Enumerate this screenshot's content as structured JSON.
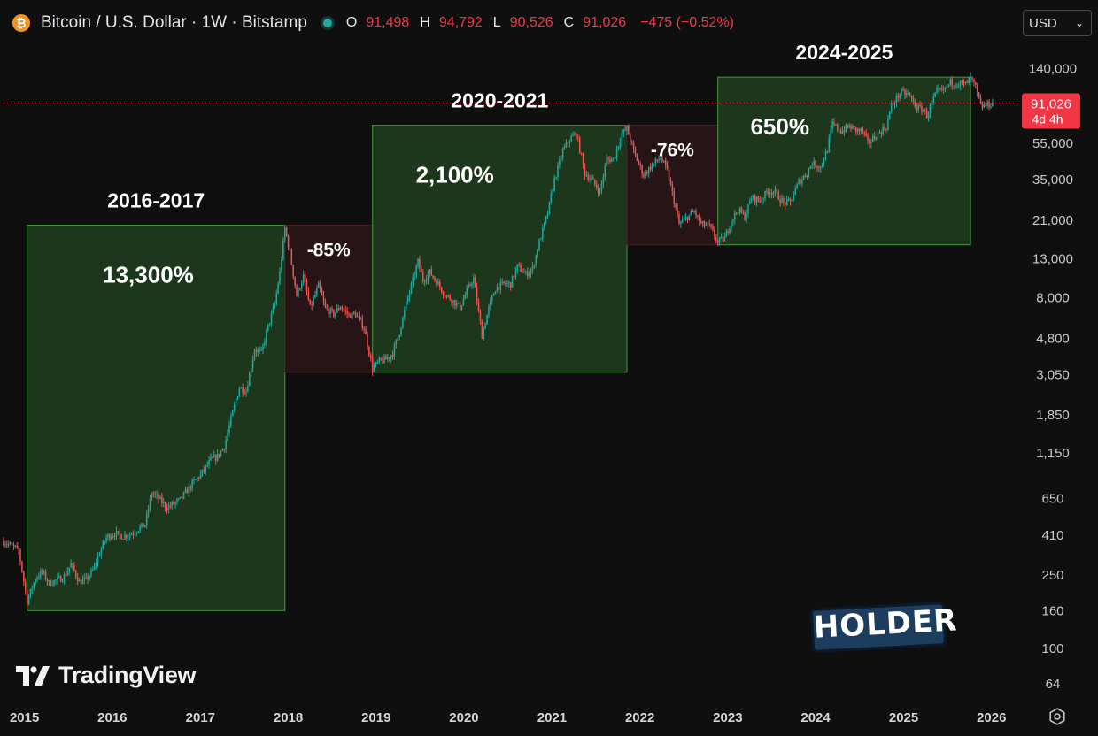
{
  "header": {
    "pair": "Bitcoin / U.S. Dollar · 1W · Bitstamp",
    "open_label": "O",
    "open": "91,498",
    "high_label": "H",
    "high": "94,792",
    "low_label": "L",
    "low": "90,526",
    "close_label": "C",
    "close": "91,026",
    "change": "−475 (−0.52%)"
  },
  "currency": {
    "selected": "USD"
  },
  "price_label": {
    "price": "91,026",
    "countdown": "4d 4h"
  },
  "branding": {
    "tradingview": "TradingView"
  },
  "colors": {
    "up": "#26a69a",
    "down": "#ef5350",
    "bull_zone": "#1f3a1f",
    "bear_zone": "#2a1517",
    "price_line": "#f23645"
  },
  "chart_data": {
    "type": "candlestick",
    "scale": "log",
    "ylim": [
      52,
      190000
    ],
    "xlim": [
      "2014-10-06",
      "2026-02-15"
    ],
    "y_ticks": [
      140000,
      55000,
      35000,
      21000,
      13000,
      8000,
      4800,
      3050,
      1850,
      1150,
      650,
      410,
      250,
      160,
      100,
      64
    ],
    "y_tick_labels": [
      "140,000",
      "55,000",
      "35,000",
      "21,000",
      "13,000",
      "8,000",
      "4,800",
      "3,050",
      "1,850",
      "1,150",
      "650",
      "410",
      "250",
      "160",
      "100",
      "64"
    ],
    "x_ticks": [
      "2015",
      "2016",
      "2017",
      "2018",
      "2019",
      "2020",
      "2021",
      "2022",
      "2023",
      "2024",
      "2025",
      "2026"
    ],
    "last_price": 91026,
    "zones": [
      {
        "kind": "bull",
        "label": "2016-2017",
        "pct": "13,300%",
        "start": "2015-01-12",
        "end": "2017-12-18",
        "low": 160,
        "high": 19800
      },
      {
        "kind": "bear",
        "label": "",
        "pct": "-85%",
        "start": "2017-12-18",
        "end": "2018-12-17",
        "low": 3150,
        "high": 19800
      },
      {
        "kind": "bull",
        "label": "2020-2021",
        "pct": "2,100%",
        "start": "2018-12-17",
        "end": "2021-11-08",
        "low": 3150,
        "high": 69000
      },
      {
        "kind": "bear",
        "label": "",
        "pct": "-76%",
        "start": "2021-11-08",
        "end": "2022-11-21",
        "low": 15500,
        "high": 69000
      },
      {
        "kind": "bull",
        "label": "2024-2025",
        "pct": "650%",
        "start": "2022-11-21",
        "end": "2025-10-06",
        "low": 15500,
        "high": 126000
      }
    ],
    "price_path": [
      [
        "2014-10-06",
        380
      ],
      [
        "2014-11-10",
        360
      ],
      [
        "2014-12-08",
        340
      ],
      [
        "2015-01-12",
        180
      ],
      [
        "2015-02-16",
        240
      ],
      [
        "2015-03-16",
        260
      ],
      [
        "2015-04-13",
        225
      ],
      [
        "2015-05-18",
        235
      ],
      [
        "2015-06-15",
        245
      ],
      [
        "2015-07-13",
        285
      ],
      [
        "2015-08-17",
        230
      ],
      [
        "2015-09-14",
        235
      ],
      [
        "2015-10-12",
        265
      ],
      [
        "2015-11-09",
        330
      ],
      [
        "2015-12-07",
        400
      ],
      [
        "2016-01-11",
        420
      ],
      [
        "2016-02-15",
        405
      ],
      [
        "2016-03-14",
        415
      ],
      [
        "2016-04-11",
        440
      ],
      [
        "2016-05-16",
        470
      ],
      [
        "2016-06-13",
        700
      ],
      [
        "2016-07-11",
        650
      ],
      [
        "2016-08-15",
        580
      ],
      [
        "2016-09-12",
        610
      ],
      [
        "2016-10-10",
        640
      ],
      [
        "2016-11-07",
        720
      ],
      [
        "2016-12-05",
        800
      ],
      [
        "2017-01-09",
        900
      ],
      [
        "2017-02-13",
        1050
      ],
      [
        "2017-03-13",
        1100
      ],
      [
        "2017-04-10",
        1250
      ],
      [
        "2017-05-15",
        1900
      ],
      [
        "2017-06-12",
        2600
      ],
      [
        "2017-07-10",
        2500
      ],
      [
        "2017-08-14",
        4200
      ],
      [
        "2017-09-11",
        4000
      ],
      [
        "2017-10-09",
        5600
      ],
      [
        "2017-11-06",
        7400
      ],
      [
        "2017-11-27",
        11000
      ],
      [
        "2017-12-18",
        19000
      ],
      [
        "2018-01-08",
        14000
      ],
      [
        "2018-02-05",
        8200
      ],
      [
        "2018-03-05",
        10500
      ],
      [
        "2018-04-02",
        7000
      ],
      [
        "2018-05-07",
        9300
      ],
      [
        "2018-06-04",
        7000
      ],
      [
        "2018-07-09",
        6500
      ],
      [
        "2018-08-06",
        7200
      ],
      [
        "2018-09-10",
        6400
      ],
      [
        "2018-10-08",
        6500
      ],
      [
        "2018-11-12",
        5500
      ],
      [
        "2018-12-17",
        3300
      ],
      [
        "2019-01-14",
        3600
      ],
      [
        "2019-02-11",
        3700
      ],
      [
        "2019-03-11",
        4000
      ],
      [
        "2019-04-08",
        5200
      ],
      [
        "2019-05-13",
        8000
      ],
      [
        "2019-06-24",
        12500
      ],
      [
        "2019-07-15",
        10000
      ],
      [
        "2019-08-12",
        11000
      ],
      [
        "2019-09-16",
        9500
      ],
      [
        "2019-10-14",
        8300
      ],
      [
        "2019-11-11",
        7800
      ],
      [
        "2019-12-16",
        7100
      ],
      [
        "2020-01-13",
        8700
      ],
      [
        "2020-02-10",
        10200
      ],
      [
        "2020-03-16",
        5000
      ],
      [
        "2020-04-13",
        7000
      ],
      [
        "2020-05-11",
        9000
      ],
      [
        "2020-06-15",
        9500
      ],
      [
        "2020-07-13",
        9500
      ],
      [
        "2020-08-10",
        11800
      ],
      [
        "2020-09-14",
        10700
      ],
      [
        "2020-10-12",
        11500
      ],
      [
        "2020-11-09",
        16000
      ],
      [
        "2020-12-14",
        23000
      ],
      [
        "2021-01-11",
        35000
      ],
      [
        "2021-02-15",
        50000
      ],
      [
        "2021-03-15",
        58000
      ],
      [
        "2021-04-12",
        62000
      ],
      [
        "2021-05-17",
        38000
      ],
      [
        "2021-06-14",
        35000
      ],
      [
        "2021-07-19",
        30000
      ],
      [
        "2021-08-16",
        45000
      ],
      [
        "2021-09-13",
        45000
      ],
      [
        "2021-10-18",
        62000
      ],
      [
        "2021-11-08",
        66000
      ],
      [
        "2021-12-13",
        47000
      ],
      [
        "2022-01-17",
        37000
      ],
      [
        "2022-02-14",
        41000
      ],
      [
        "2022-03-28",
        46000
      ],
      [
        "2022-04-25",
        39000
      ],
      [
        "2022-05-16",
        29500
      ],
      [
        "2022-06-13",
        20000
      ],
      [
        "2022-07-18",
        22000
      ],
      [
        "2022-08-15",
        23500
      ],
      [
        "2022-09-12",
        20000
      ],
      [
        "2022-10-17",
        19500
      ],
      [
        "2022-11-21",
        16000
      ],
      [
        "2022-12-19",
        16800
      ],
      [
        "2023-01-16",
        21000
      ],
      [
        "2023-02-13",
        24000
      ],
      [
        "2023-03-13",
        22000
      ],
      [
        "2023-04-10",
        28000
      ],
      [
        "2023-05-15",
        27000
      ],
      [
        "2023-06-19",
        30500
      ],
      [
        "2023-07-17",
        29800
      ],
      [
        "2023-08-21",
        26000
      ],
      [
        "2023-09-18",
        26500
      ],
      [
        "2023-10-23",
        34000
      ],
      [
        "2023-11-20",
        37000
      ],
      [
        "2023-12-18",
        43000
      ],
      [
        "2024-01-22",
        41000
      ],
      [
        "2024-02-19",
        51000
      ],
      [
        "2024-03-11",
        70000
      ],
      [
        "2024-04-15",
        64000
      ],
      [
        "2024-05-20",
        68000
      ],
      [
        "2024-06-17",
        65000
      ],
      [
        "2024-07-15",
        64000
      ],
      [
        "2024-08-05",
        55000
      ],
      [
        "2024-09-16",
        62000
      ],
      [
        "2024-10-21",
        68000
      ],
      [
        "2024-11-11",
        88000
      ],
      [
        "2024-12-16",
        103000
      ],
      [
        "2025-01-20",
        102000
      ],
      [
        "2025-02-24",
        86000
      ],
      [
        "2025-03-24",
        84000
      ],
      [
        "2025-04-07",
        78000
      ],
      [
        "2025-05-19",
        105000
      ],
      [
        "2025-06-16",
        106000
      ],
      [
        "2025-07-14",
        118000
      ],
      [
        "2025-08-11",
        117000
      ],
      [
        "2025-09-15",
        115000
      ],
      [
        "2025-10-06",
        124000
      ],
      [
        "2025-10-27",
        110000
      ],
      [
        "2025-11-17",
        87000
      ],
      [
        "2025-12-15",
        89000
      ],
      [
        "2026-01-05",
        91026
      ]
    ]
  }
}
